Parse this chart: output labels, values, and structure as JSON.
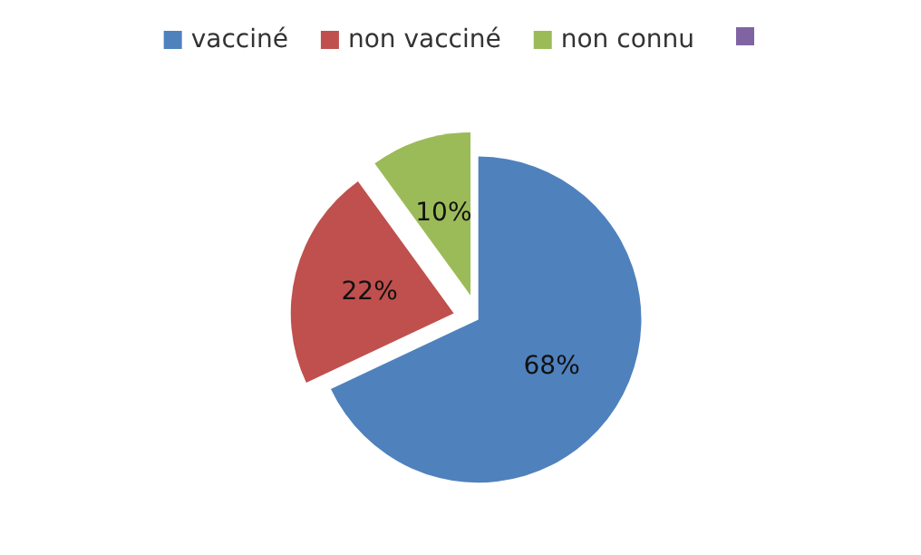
{
  "chart_data": {
    "type": "pie",
    "categories": [
      "vacciné",
      "non vacciné",
      "non connu",
      null
    ],
    "values": [
      68,
      22,
      10,
      0
    ],
    "colors": [
      "#4f81bd",
      "#c0504d",
      "#9bbb59",
      "#8064a2"
    ],
    "value_labels": [
      "68%",
      "22%",
      "10%",
      null
    ],
    "legend": "top"
  }
}
